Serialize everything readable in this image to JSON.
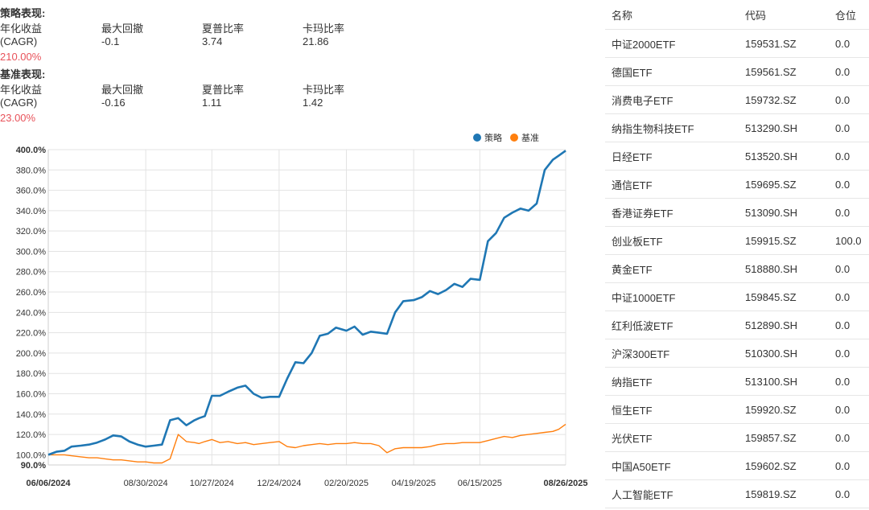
{
  "strategy": {
    "title": "策略表现:",
    "labels": [
      "年化收益",
      "最大回撤",
      "夏普比率",
      "卡玛比率"
    ],
    "cagr_label": "(CAGR)",
    "max_drawdown": "-0.1",
    "sharpe": "3.74",
    "calmar": "21.86",
    "cagr": "210.00%"
  },
  "benchmark": {
    "title": "基准表现:",
    "labels": [
      "年化收益",
      "最大回撤",
      "夏普比率",
      "卡玛比率"
    ],
    "cagr_label": "(CAGR)",
    "max_drawdown": "-0.16",
    "sharpe": "1.11",
    "calmar": "1.42",
    "cagr": "23.00%"
  },
  "colors": {
    "strategy": "#1f77b4",
    "benchmark": "#ff7f0e",
    "red_value": "#e8525a"
  },
  "chart_data": {
    "type": "line",
    "legend": [
      "策略",
      "基准"
    ],
    "legend_position": "top-right",
    "grid": true,
    "ylim": [
      90,
      400
    ],
    "y_ticks": [
      "400.0%",
      "380.0%",
      "360.0%",
      "340.0%",
      "320.0%",
      "300.0%",
      "280.0%",
      "260.0%",
      "240.0%",
      "220.0%",
      "200.0%",
      "180.0%",
      "160.0%",
      "140.0%",
      "120.0%",
      "100.0%",
      "90.0%"
    ],
    "x_ticks": [
      "06/06/2024",
      "08/30/2024",
      "10/27/2024",
      "12/24/2024",
      "02/20/2025",
      "04/19/2025",
      "06/15/2025",
      "08/26/2025"
    ],
    "x_tick_positions": [
      0,
      84,
      141,
      199,
      257,
      315,
      372,
      446
    ],
    "series": [
      {
        "name": "策略",
        "x": [
          0,
          7,
          14,
          20,
          28,
          35,
          42,
          49,
          56,
          63,
          70,
          77,
          84,
          91,
          98,
          105,
          112,
          119,
          126,
          130,
          135,
          141,
          148,
          155,
          163,
          170,
          177,
          184,
          191,
          199,
          206,
          213,
          220,
          227,
          234,
          241,
          248,
          257,
          264,
          271,
          278,
          285,
          292,
          299,
          306,
          315,
          322,
          329,
          336,
          343,
          350,
          357,
          364,
          372,
          379,
          386,
          393,
          400,
          407,
          414,
          421,
          428,
          435,
          440,
          446
        ],
        "y": [
          100,
          103,
          104,
          108,
          109,
          110,
          112,
          115,
          119,
          118,
          113,
          110,
          108,
          109,
          110,
          134,
          136,
          129,
          134,
          136,
          138,
          158,
          158,
          162,
          166,
          168,
          160,
          156,
          157,
          157,
          175,
          191,
          190,
          200,
          217,
          219,
          225,
          222,
          226,
          218,
          221,
          220,
          219,
          240,
          251,
          252,
          255,
          261,
          258,
          262,
          268,
          265,
          273,
          272,
          310,
          318,
          333,
          338,
          342,
          340,
          347,
          380,
          390,
          394,
          399
        ]
      },
      {
        "name": "基准",
        "x": [
          0,
          7,
          14,
          20,
          28,
          35,
          42,
          49,
          56,
          63,
          70,
          77,
          84,
          91,
          98,
          105,
          112,
          119,
          126,
          130,
          135,
          141,
          148,
          155,
          163,
          170,
          177,
          184,
          191,
          199,
          206,
          213,
          220,
          227,
          234,
          241,
          248,
          257,
          264,
          271,
          278,
          285,
          292,
          299,
          306,
          315,
          322,
          329,
          336,
          343,
          350,
          357,
          364,
          372,
          379,
          386,
          393,
          400,
          407,
          414,
          421,
          428,
          435,
          440,
          446
        ],
        "y": [
          100,
          100,
          100,
          99,
          98,
          97,
          97,
          96,
          95,
          95,
          94,
          93,
          93,
          92,
          92,
          96,
          120,
          113,
          112,
          111,
          113,
          115,
          112,
          113,
          111,
          112,
          110,
          111,
          112,
          113,
          108,
          107,
          109,
          110,
          111,
          110,
          111,
          111,
          112,
          111,
          111,
          109,
          102,
          106,
          107,
          107,
          107,
          108,
          110,
          111,
          111,
          112,
          112,
          112,
          114,
          116,
          118,
          117,
          119,
          120,
          121,
          122,
          123,
          125,
          130
        ]
      }
    ]
  },
  "table": {
    "headers": [
      "名称",
      "代码",
      "仓位"
    ],
    "rows": [
      [
        "中证2000ETF",
        "159531.SZ",
        "0.0"
      ],
      [
        "德国ETF",
        "159561.SZ",
        "0.0"
      ],
      [
        "消费电子ETF",
        "159732.SZ",
        "0.0"
      ],
      [
        "纳指生物科技ETF",
        "513290.SH",
        "0.0"
      ],
      [
        "日经ETF",
        "513520.SH",
        "0.0"
      ],
      [
        "通信ETF",
        "159695.SZ",
        "0.0"
      ],
      [
        "香港证券ETF",
        "513090.SH",
        "0.0"
      ],
      [
        "创业板ETF",
        "159915.SZ",
        "100.0"
      ],
      [
        "黄金ETF",
        "518880.SH",
        "0.0"
      ],
      [
        "中证1000ETF",
        "159845.SZ",
        "0.0"
      ],
      [
        "红利低波ETF",
        "512890.SH",
        "0.0"
      ],
      [
        "沪深300ETF",
        "510300.SH",
        "0.0"
      ],
      [
        "纳指ETF",
        "513100.SH",
        "0.0"
      ],
      [
        "恒生ETF",
        "159920.SZ",
        "0.0"
      ],
      [
        "光伏ETF",
        "159857.SZ",
        "0.0"
      ],
      [
        "中国A50ETF",
        "159602.SZ",
        "0.0"
      ],
      [
        "人工智能ETF",
        "159819.SZ",
        "0.0"
      ]
    ]
  }
}
